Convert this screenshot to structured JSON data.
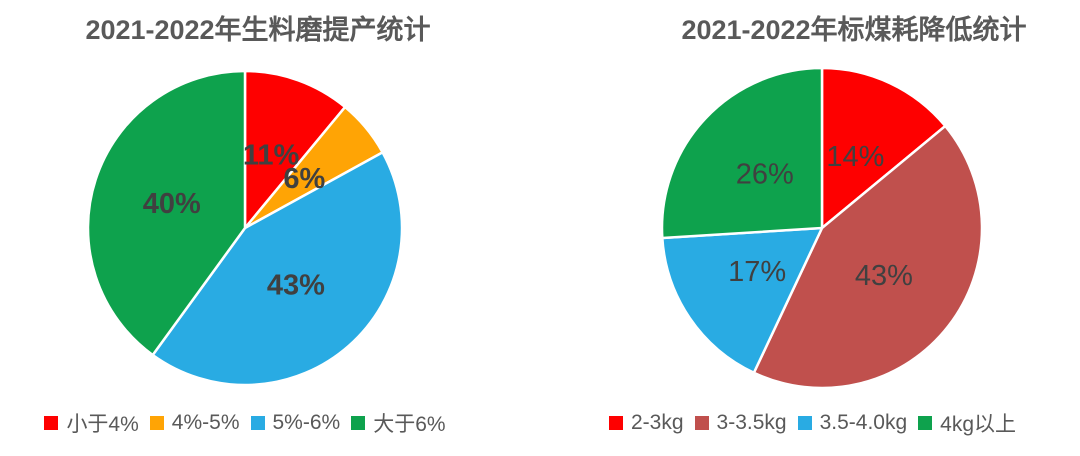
{
  "figure": {
    "background_color": "#ffffff",
    "label_text_color": "#404040",
    "title_text_color": "#595959",
    "legend_text_color": "#595959"
  },
  "chart_data": [
    {
      "type": "pie",
      "title": "2021-2022年生料磨提产统计",
      "categories": [
        "小于4%",
        "4%-5%",
        "5%-6%",
        "大于6%"
      ],
      "values": [
        11,
        6,
        43,
        40
      ],
      "data_labels": [
        "11%",
        "6%",
        "43%",
        "40%"
      ],
      "colors": [
        "#fe0000",
        "#ffa405",
        "#29abe3",
        "#0ea24d"
      ],
      "unit": "%",
      "start_angle_deg": 0,
      "direction": "clockwise",
      "legend_position": "bottom",
      "label_font_weight": "bold",
      "radius_px": 157
    },
    {
      "type": "pie",
      "title": "2021-2022年标煤耗降低统计",
      "categories": [
        "2-3kg",
        "3-3.5kg",
        "3.5-4.0kg",
        "4kg以上"
      ],
      "values": [
        14,
        43,
        17,
        26
      ],
      "data_labels": [
        "14%",
        "43%",
        "17%",
        "26%"
      ],
      "colors": [
        "#fe0000",
        "#c0504d",
        "#29abe3",
        "#0ea24d"
      ],
      "unit": "%",
      "start_angle_deg": 0,
      "direction": "clockwise",
      "legend_position": "bottom",
      "label_font_weight": "normal",
      "radius_px": 160
    }
  ]
}
